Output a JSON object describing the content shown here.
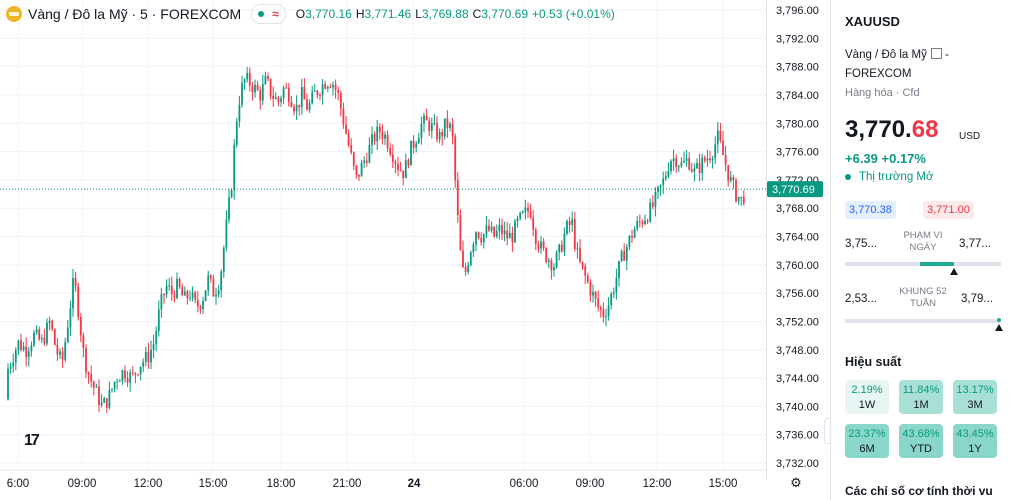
{
  "legend": {
    "title": "Vàng / Đô la Mỹ · 5 · FOREXCOM",
    "open_key": "O",
    "open": "3,770.16",
    "high_key": "H",
    "high": "3,771.46",
    "low_key": "L",
    "low": "3,769.88",
    "close_key": "C",
    "close": "3,770.69",
    "change": "+0.53 (+0.01%)",
    "market_icon": "market-open-dot",
    "wave_icon": "≈"
  },
  "colors": {
    "up": "#089981",
    "down": "#f23645",
    "accent": "#2962ff",
    "grid": "#f0f3fa"
  },
  "price_axis": {
    "labels": [
      "3,796.00",
      "3,792.00",
      "3,788.00",
      "3,784.00",
      "3,780.00",
      "3,776.00",
      "3,772.00",
      "3,768.00",
      "3,764.00",
      "3,760.00",
      "3,756.00",
      "3,752.00",
      "3,748.00",
      "3,744.00",
      "3,740.00",
      "3,736.00",
      "3,732.00"
    ],
    "current_price": "3,770.69"
  },
  "time_axis": {
    "labels": [
      "6:00",
      "09:00",
      "12:00",
      "15:00",
      "18:00",
      "21:00",
      "24",
      "06:00",
      "09:00",
      "12:00",
      "15:00"
    ]
  },
  "chart_data": {
    "type": "candlestick",
    "ylim": [
      3730,
      3797
    ],
    "current": 3770.69,
    "path": [
      [
        0,
        3741
      ],
      [
        4,
        3744
      ],
      [
        10,
        3746
      ],
      [
        18,
        3749
      ],
      [
        26,
        3748
      ],
      [
        34,
        3750
      ],
      [
        42,
        3749
      ],
      [
        50,
        3752
      ],
      [
        56,
        3748
      ],
      [
        62,
        3746
      ],
      [
        68,
        3752
      ],
      [
        74,
        3758
      ],
      [
        78,
        3754
      ],
      [
        84,
        3747
      ],
      [
        90,
        3744
      ],
      [
        96,
        3742
      ],
      [
        102,
        3740
      ],
      [
        108,
        3741
      ],
      [
        116,
        3744
      ],
      [
        124,
        3745
      ],
      [
        132,
        3744
      ],
      [
        140,
        3746
      ],
      [
        148,
        3747
      ],
      [
        154,
        3749
      ],
      [
        160,
        3754
      ],
      [
        166,
        3757
      ],
      [
        172,
        3756
      ],
      [
        178,
        3757
      ],
      [
        184,
        3755
      ],
      [
        190,
        3756
      ],
      [
        196,
        3754
      ],
      [
        202,
        3755
      ],
      [
        208,
        3758
      ],
      [
        214,
        3756
      ],
      [
        220,
        3758
      ],
      [
        226,
        3765
      ],
      [
        232,
        3772
      ],
      [
        236,
        3780
      ],
      [
        240,
        3784
      ],
      [
        244,
        3786
      ],
      [
        248,
        3786
      ],
      [
        254,
        3785
      ],
      [
        260,
        3784
      ],
      [
        266,
        3786
      ],
      [
        272,
        3784
      ],
      [
        278,
        3783
      ],
      [
        284,
        3785
      ],
      [
        290,
        3784
      ],
      [
        296,
        3782
      ],
      [
        302,
        3784
      ],
      [
        308,
        3782
      ],
      [
        314,
        3784
      ],
      [
        320,
        3785
      ],
      [
        326,
        3786
      ],
      [
        332,
        3786
      ],
      [
        338,
        3784
      ],
      [
        344,
        3780
      ],
      [
        350,
        3776
      ],
      [
        356,
        3772
      ],
      [
        362,
        3774
      ],
      [
        368,
        3776
      ],
      [
        374,
        3778
      ],
      [
        380,
        3779
      ],
      [
        386,
        3778
      ],
      [
        392,
        3776
      ],
      [
        398,
        3774
      ],
      [
        404,
        3773
      ],
      [
        410,
        3776
      ],
      [
        416,
        3778
      ],
      [
        422,
        3780
      ],
      [
        428,
        3780
      ],
      [
        434,
        3779
      ],
      [
        440,
        3778
      ],
      [
        446,
        3780
      ],
      [
        452,
        3779
      ],
      [
        456,
        3770
      ],
      [
        460,
        3762
      ],
      [
        464,
        3758
      ],
      [
        470,
        3762
      ],
      [
        476,
        3765
      ],
      [
        482,
        3764
      ],
      [
        488,
        3765
      ],
      [
        494,
        3764
      ],
      [
        500,
        3765
      ],
      [
        506,
        3764
      ],
      [
        512,
        3764
      ],
      [
        518,
        3766
      ],
      [
        524,
        3767
      ],
      [
        530,
        3768
      ],
      [
        536,
        3764
      ],
      [
        542,
        3762
      ],
      [
        548,
        3761
      ],
      [
        554,
        3760
      ],
      [
        560,
        3762
      ],
      [
        566,
        3765
      ],
      [
        572,
        3766
      ],
      [
        576,
        3762
      ],
      [
        580,
        3760
      ],
      [
        586,
        3758
      ],
      [
        592,
        3756
      ],
      [
        598,
        3754
      ],
      [
        604,
        3753
      ],
      [
        610,
        3755
      ],
      [
        616,
        3758
      ],
      [
        622,
        3761
      ],
      [
        628,
        3763
      ],
      [
        634,
        3765
      ],
      [
        640,
        3766
      ],
      [
        646,
        3767
      ],
      [
        652,
        3768
      ],
      [
        658,
        3770
      ],
      [
        664,
        3772
      ],
      [
        670,
        3775
      ],
      [
        676,
        3775
      ],
      [
        682,
        3774
      ],
      [
        688,
        3775
      ],
      [
        694,
        3773
      ],
      [
        700,
        3774
      ],
      [
        706,
        3775
      ],
      [
        712,
        3776
      ],
      [
        718,
        3778
      ],
      [
        724,
        3775
      ],
      [
        730,
        3772
      ],
      [
        736,
        3770
      ],
      [
        742,
        3769
      ],
      [
        746,
        3770.69
      ]
    ],
    "time_ticks": [
      "6:00",
      "09:00",
      "12:00",
      "15:00",
      "18:00",
      "21:00",
      "24",
      "06:00",
      "09:00",
      "12:00",
      "15:00"
    ]
  },
  "sidebar": {
    "symbol": "XAUUSD",
    "desc_line1": "Vàng / Đô la Mỹ",
    "desc_sep": " -",
    "desc_line2": "FOREXCOM",
    "category": "Hàng hóa · Cfd",
    "price_main": "3,770.",
    "price_tail": "68",
    "currency": "USD",
    "change": "+6.39  +0.17%",
    "market_status": "Thị trường Mở",
    "bid": "3,770.38",
    "ask": "3,771.00",
    "day_range": {
      "low": "3,75...",
      "label": "PHẠM VI NGÀY",
      "high": "3,77...",
      "fill_start": 0.48,
      "fill_end": 0.7,
      "marker": 0.7
    },
    "year_range": {
      "low": "2,53...",
      "label": "KHUNG 52 TUẦN",
      "high": "3,79...",
      "marker": 0.99
    },
    "performance_title": "Hiệu suất",
    "performance": [
      {
        "value": "2.19%",
        "label": "1W",
        "shade": "light"
      },
      {
        "value": "11.84%",
        "label": "1M",
        "shade": "mid"
      },
      {
        "value": "13.17%",
        "label": "3M",
        "shade": "mid"
      },
      {
        "value": "23.37%",
        "label": "6M",
        "shade": "dark"
      },
      {
        "value": "43.68%",
        "label": "YTD",
        "shade": "dark"
      },
      {
        "value": "43.45%",
        "label": "1Y",
        "shade": "dark"
      }
    ],
    "footer": "Các chỉ số cơ tính thời vu"
  }
}
